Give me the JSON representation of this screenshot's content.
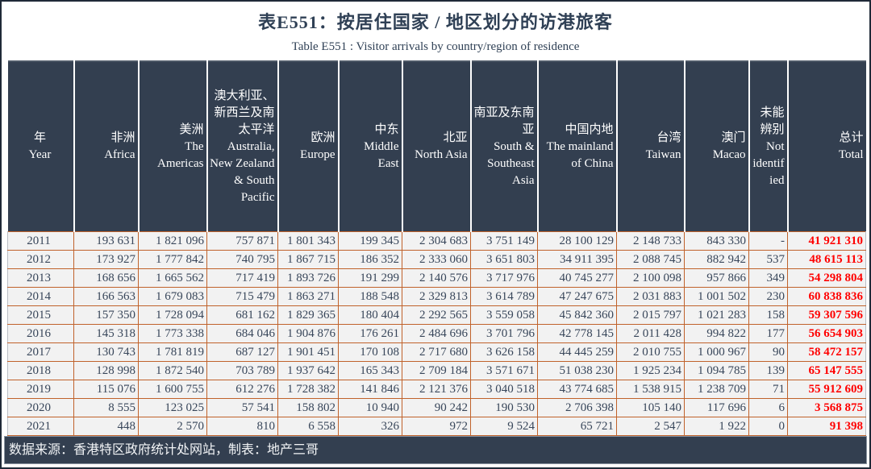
{
  "title": "表E551：按居住国家 / 地区划分的访港旅客",
  "subtitle": "Table E551 : Visitor arrivals by country/region of residence",
  "footer": "数据来源：香港特区政府统计处网站，制表：地产三哥",
  "colors": {
    "header_bg": "#333F50",
    "row_bg": "#F2F2F2",
    "cell_border": "#C0622B",
    "total_text": "#FF0000",
    "title_text": "#2F4055",
    "header_text": "#FFFFFF"
  },
  "columns": [
    {
      "zh": "年",
      "en": "Year"
    },
    {
      "zh": "非洲",
      "en": "Africa"
    },
    {
      "zh": "美洲",
      "en": "The Americas"
    },
    {
      "zh": "澳大利亚、新西兰及南太平洋",
      "en": "Australia, New Zealand & South Pacific"
    },
    {
      "zh": "欧洲",
      "en": "Europe"
    },
    {
      "zh": "中东",
      "en": "Middle East"
    },
    {
      "zh": "北亚",
      "en": "North Asia"
    },
    {
      "zh": "南亚及东南亚",
      "en": "South & Southeast Asia"
    },
    {
      "zh": "中国内地",
      "en": "The mainland of China"
    },
    {
      "zh": "台湾",
      "en": "Taiwan"
    },
    {
      "zh": "澳门",
      "en": "Macao"
    },
    {
      "zh": "未能辨别",
      "en": "Not identified"
    },
    {
      "zh": "总计",
      "en": "Total"
    }
  ],
  "rows": [
    [
      "2011",
      "193 631",
      "1 821 096",
      "757 871",
      "1 801 343",
      "199 345",
      "2 304 683",
      "3 751 149",
      "28 100 129",
      "2 148 733",
      "843 330",
      "-",
      "41 921 310"
    ],
    [
      "2012",
      "173 927",
      "1 777 842",
      "740 795",
      "1 867 715",
      "186 352",
      "2 333 060",
      "3 651 803",
      "34 911 395",
      "2 088 745",
      "882 942",
      "537",
      "48 615 113"
    ],
    [
      "2013",
      "168 656",
      "1 665 562",
      "717 419",
      "1 893 726",
      "191 299",
      "2 140 576",
      "3 717 976",
      "40 745 277",
      "2 100 098",
      "957 866",
      "349",
      "54 298 804"
    ],
    [
      "2014",
      "166 563",
      "1 679 083",
      "715 479",
      "1 863 271",
      "188 548",
      "2 329 813",
      "3 614 789",
      "47 247 675",
      "2 031 883",
      "1 001 502",
      "230",
      "60 838 836"
    ],
    [
      "2015",
      "157 350",
      "1 728 094",
      "681 162",
      "1 829 365",
      "180 404",
      "2 292 565",
      "3 559 058",
      "45 842 360",
      "2 015 797",
      "1 021 283",
      "158",
      "59 307 596"
    ],
    [
      "2016",
      "145 318",
      "1 773 338",
      "684 046",
      "1 904 876",
      "176 261",
      "2 484 696",
      "3 701 796",
      "42 778 145",
      "2 011 428",
      "994 822",
      "177",
      "56 654 903"
    ],
    [
      "2017",
      "130 743",
      "1 781 819",
      "687 127",
      "1 901 451",
      "170 108",
      "2 717 680",
      "3 626 158",
      "44 445 259",
      "2 010 755",
      "1 000 967",
      "90",
      "58 472 157"
    ],
    [
      "2018",
      "128 998",
      "1 872 540",
      "703 789",
      "1 937 642",
      "165 343",
      "2 709 184",
      "3 571 671",
      "51 038 230",
      "1 925 234",
      "1 094 785",
      "139",
      "65 147 555"
    ],
    [
      "2019",
      "115 076",
      "1 600 755",
      "612 276",
      "1 728 382",
      "141 846",
      "2 121 376",
      "3 040 518",
      "43 774 685",
      "1 538 915",
      "1 238 709",
      "71",
      "55 912 609"
    ],
    [
      "2020",
      "8 555",
      "123 025",
      "57 541",
      "158 802",
      "10 940",
      "90 242",
      "190 530",
      "2 706 398",
      "105 140",
      "117 696",
      "6",
      "3 568 875"
    ],
    [
      "2021",
      "448",
      "2 570",
      "810",
      "6 558",
      "326",
      "972",
      "9 524",
      "65 721",
      "2 547",
      "1 922",
      "0",
      "91 398"
    ]
  ]
}
